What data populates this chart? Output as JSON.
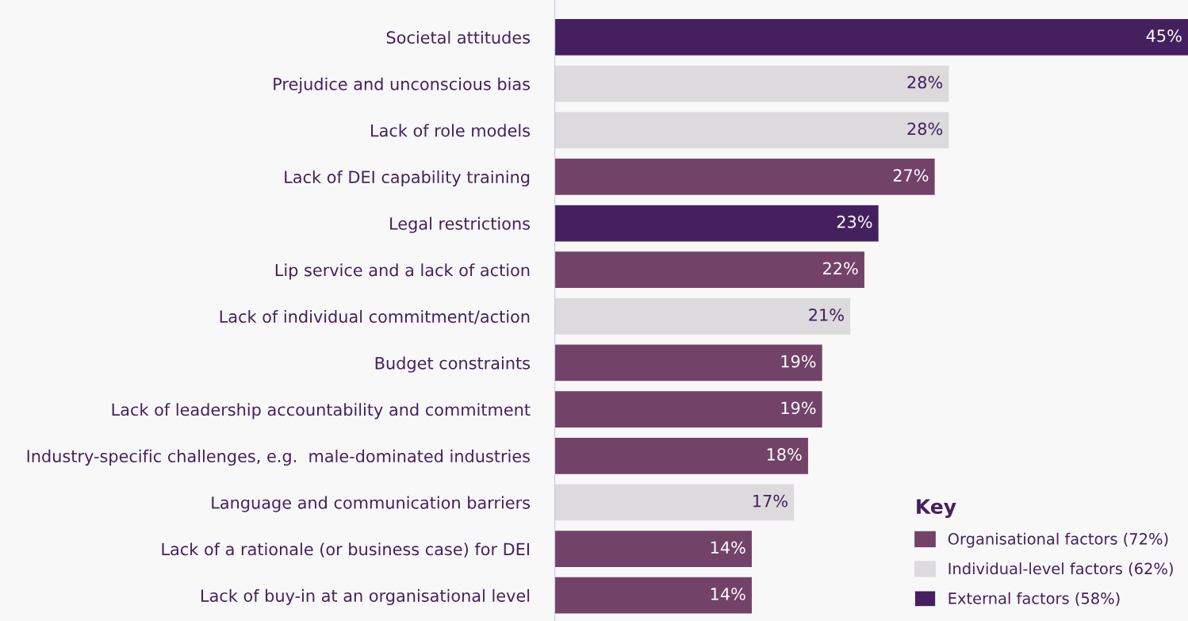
{
  "chart_data": {
    "type": "bar",
    "orientation": "horizontal",
    "legend": "bottom right",
    "legend_title": "Key",
    "categories": [
      "Societal attitudes",
      "Prejudice and unconscious bias",
      "Lack of role models",
      "Lack of DEI capability training",
      "Legal restrictions",
      "Lip service and a lack of action",
      "Lack of individual commitment/action",
      "Budget constraints",
      "Lack of leadership accountability and commitment",
      "Industry-specific challenges, e.g.  male-dominated industries",
      "Language and communication barriers",
      "Lack of a rationale (or business case) for DEI",
      "Lack of buy-in at an organisational level"
    ],
    "series": [
      {
        "name": "Organisational factors (72%)",
        "color": "#724268",
        "values": [
          null,
          null,
          null,
          27,
          null,
          22,
          null,
          19,
          19,
          18,
          null,
          14,
          14
        ],
        "value_labels": [
          null,
          null,
          null,
          "27%",
          null,
          "22%",
          null,
          "19%",
          "19%",
          "18%",
          null,
          "14%",
          "14%"
        ]
      },
      {
        "name": "Individual-level factors (62%)",
        "color": "#dcdadd",
        "values": [
          null,
          28,
          28,
          null,
          null,
          null,
          21,
          null,
          null,
          null,
          17,
          null,
          null
        ],
        "value_labels": [
          null,
          "28%",
          "28%",
          null,
          null,
          null,
          "21%",
          null,
          null,
          null,
          "17%",
          null,
          null
        ]
      },
      {
        "name": "External factors (58%)",
        "color": "#45205e",
        "values": [
          45,
          null,
          null,
          null,
          23,
          null,
          null,
          null,
          null,
          null,
          null,
          null,
          null
        ],
        "value_labels": [
          "45%",
          null,
          null,
          null,
          "23%",
          null,
          null,
          null,
          null,
          null,
          null,
          null,
          null
        ]
      }
    ]
  }
}
